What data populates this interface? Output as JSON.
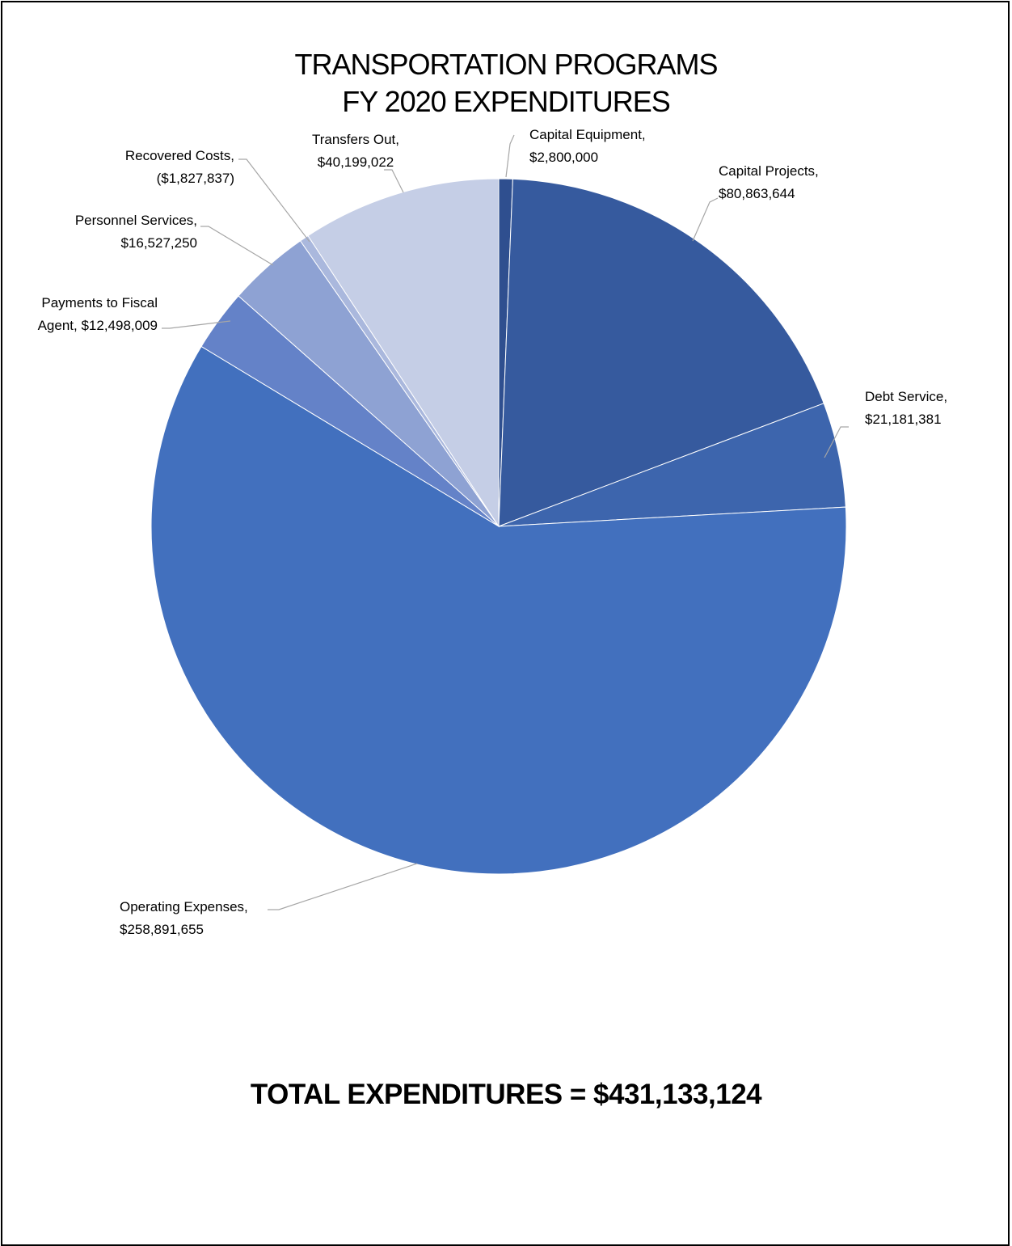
{
  "chart_data": {
    "type": "pie",
    "title_lines": [
      "TRANSPORTATION PROGRAMS",
      "FY 2020 EXPENDITURES"
    ],
    "slices": [
      {
        "name": "Capital Equipment",
        "value": 2800000,
        "label": [
          "Capital Equipment,",
          "$2,800,000"
        ],
        "color": "#2f4f8f"
      },
      {
        "name": "Capital Projects",
        "value": 80863644,
        "label": [
          "Capital Projects,",
          "$80,863,644"
        ],
        "color": "#365a9e"
      },
      {
        "name": "Debt Service",
        "value": 21181381,
        "label": [
          "Debt Service,",
          "$21,181,381"
        ],
        "color": "#3d65ad"
      },
      {
        "name": "Operating Expenses",
        "value": 258891655,
        "label": [
          "Operating Expenses,",
          "$258,891,655"
        ],
        "color": "#4270be"
      },
      {
        "name": "Payments to Fiscal Agent",
        "value": 12498009,
        "label": [
          "Payments to Fiscal",
          "Agent, $12,498,009"
        ],
        "color": "#6482c8"
      },
      {
        "name": "Personnel Services",
        "value": 16527250,
        "label": [
          "Personnel Services,",
          "$16,527,250"
        ],
        "color": "#8ea2d3"
      },
      {
        "name": "Recovered Costs",
        "value": -1827837,
        "label": [
          "Recovered Costs,",
          "($1,827,837)"
        ],
        "color": "#aab8dd"
      },
      {
        "name": "Transfers Out",
        "value": 40199022,
        "label": [
          "Transfers Out,",
          "$40,199,022"
        ],
        "color": "#c5cee6"
      }
    ]
  },
  "footer": {
    "total_text": "TOTAL EXPENDITURES = $431,133,124"
  }
}
